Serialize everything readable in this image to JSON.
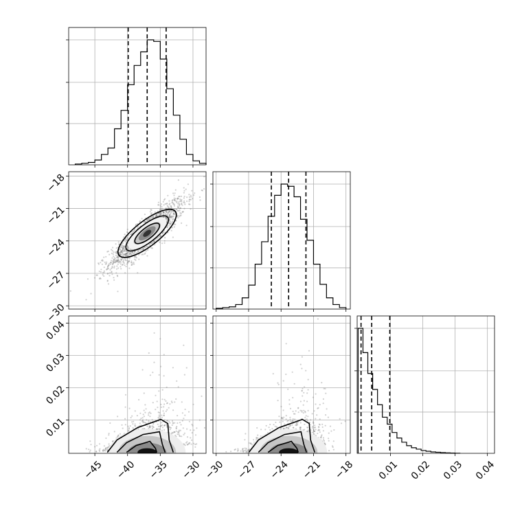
{
  "chart_data": {
    "type": "corner",
    "parameters": [
      {
        "id": "p0",
        "range": [
          -49,
          -28
        ],
        "ticks": [
          -45,
          -40,
          -35,
          -30
        ],
        "tick_labels": [
          "−45",
          "−40",
          "−35",
          "−30"
        ],
        "quantiles": [
          -39.9,
          -37.0,
          -34.1
        ],
        "hist_bins": [
          -48,
          -47,
          -46,
          -45,
          -44,
          -43,
          -42,
          -41,
          -40,
          -39,
          -38,
          -37,
          -36,
          -35,
          -34,
          -33,
          -32,
          -31,
          -30,
          -29,
          -28
        ],
        "hist_counts": [
          1,
          2,
          3,
          6,
          13,
          21,
          45,
          68,
          100,
          124,
          141,
          156,
          154,
          132,
          95,
          62,
          32,
          13,
          5,
          2
        ]
      },
      {
        "id": "p1",
        "range": [
          -30.3,
          -17.6
        ],
        "ticks": [
          -30,
          -27,
          -24,
          -21,
          -18
        ],
        "tick_labels": [
          "−30",
          "−27",
          "−24",
          "−21",
          "−18"
        ],
        "quantiles": [
          -24.9,
          -23.3,
          -21.7
        ],
        "hist_bins": [
          -30,
          -29.4,
          -28.8,
          -28.2,
          -27.6,
          -27,
          -26.4,
          -25.8,
          -25.2,
          -24.6,
          -24,
          -23.4,
          -22.8,
          -22.2,
          -21.6,
          -21,
          -20.4,
          -19.8,
          -19.2,
          -18.6,
          -18
        ],
        "hist_counts": [
          1,
          2,
          3,
          6,
          15,
          32,
          60,
          90,
          124,
          152,
          167,
          164,
          150,
          120,
          92,
          60,
          33,
          15,
          6,
          2
        ]
      },
      {
        "id": "p2",
        "range": [
          -0.0003,
          0.0422
        ],
        "ticks": [
          0.01,
          0.02,
          0.03,
          0.04
        ],
        "tick_labels": [
          "0.01",
          "0.02",
          "0.03",
          "0.04"
        ],
        "quantiles": [
          0.0009,
          0.0042,
          0.0098
        ],
        "hist_bins": [
          0.0,
          0.0015,
          0.003,
          0.0045,
          0.006,
          0.0075,
          0.009,
          0.0105,
          0.012,
          0.0135,
          0.015,
          0.0165,
          0.018,
          0.0195,
          0.021,
          0.0225,
          0.024,
          0.0255,
          0.027,
          0.0285,
          0.03,
          0.0315
        ],
        "hist_counts": [
          180,
          145,
          115,
          92,
          70,
          52,
          42,
          30,
          22,
          16,
          11,
          8,
          6,
          4,
          3,
          2,
          1.5,
          1,
          0.6,
          0.4,
          0.2
        ]
      }
    ],
    "pairs": [
      {
        "x": "p0",
        "y": "p1",
        "mean": [
          -37.0,
          -23.3
        ],
        "sd": [
          2.9,
          1.6
        ],
        "rho": 0.88,
        "skewed": false
      },
      {
        "x": "p0",
        "y": "p2",
        "mean": [
          -37.0,
          0.005
        ],
        "sd": [
          2.9,
          0.005
        ],
        "rho": 0.45,
        "skewed": true
      },
      {
        "x": "p1",
        "y": "p2",
        "mean": [
          -23.3,
          0.005
        ],
        "sd": [
          1.6,
          0.005
        ],
        "rho": 0.45,
        "skewed": true
      }
    ]
  }
}
